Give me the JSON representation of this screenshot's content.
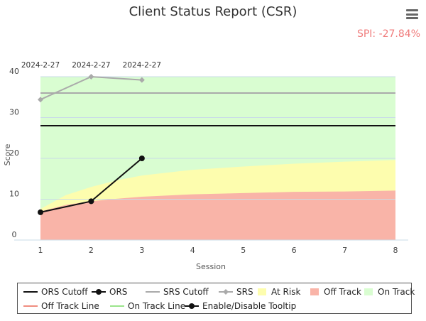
{
  "header": {
    "title": "Client Status Report (CSR)",
    "spi_text": "SPI: -27.84%",
    "menu_icon": "hamburger-menu-icon"
  },
  "chart_data": {
    "type": "line",
    "title": "Client Status Report (CSR)",
    "xlabel": "Session",
    "ylabel": "Score",
    "xlim": [
      1,
      8
    ],
    "ylim": [
      0,
      40
    ],
    "x_ticks": [
      1,
      2,
      3,
      4,
      5,
      6,
      7,
      8
    ],
    "y_ticks": [
      0,
      10,
      20,
      30,
      40
    ],
    "top_labels": [
      {
        "x": 1,
        "text": "2024-2-27"
      },
      {
        "x": 2,
        "text": "2024-2-27"
      },
      {
        "x": 3,
        "text": "2024-2-27"
      }
    ],
    "grid": true,
    "legend_position": "bottom",
    "series": [
      {
        "name": "ORS Cutoff",
        "type": "line",
        "color": "#111111",
        "x": [
          1,
          8
        ],
        "y": [
          28,
          28
        ]
      },
      {
        "name": "ORS",
        "type": "line-markers",
        "color": "#111111",
        "x": [
          1,
          2,
          3
        ],
        "y": [
          6.8,
          9.5,
          20
        ]
      },
      {
        "name": "SRS Cutoff",
        "type": "line",
        "color": "#aaaaaa",
        "x": [
          1,
          8
        ],
        "y": [
          36,
          36
        ]
      },
      {
        "name": "SRS",
        "type": "line-markers",
        "color": "#aaaaaa",
        "x": [
          1,
          2,
          3
        ],
        "y": [
          34.4,
          40,
          39.2
        ]
      },
      {
        "name": "Off Track",
        "type": "area",
        "color": "#f9b4a8",
        "x": [
          1,
          1.5,
          2,
          2.5,
          3,
          4,
          5,
          6,
          7,
          8
        ],
        "y": [
          7,
          8.6,
          9.5,
          10.1,
          10.6,
          11.2,
          11.5,
          11.8,
          11.9,
          12.1
        ]
      },
      {
        "name": "At Risk",
        "type": "area",
        "color": "#fdfdae",
        "x": [
          1,
          1.5,
          2,
          2.5,
          3,
          4,
          5,
          6,
          7,
          8
        ],
        "y": [
          7.6,
          11,
          13,
          14.6,
          15.8,
          17.2,
          18,
          18.7,
          19.2,
          19.6
        ]
      },
      {
        "name": "On Track",
        "type": "area",
        "color": "#d9fdd1",
        "x": [
          1,
          8
        ],
        "y": [
          40,
          40
        ]
      }
    ]
  },
  "legend": [
    {
      "label": "ORS Cutoff",
      "icon": "line",
      "color": "#111111"
    },
    {
      "label": "ORS",
      "icon": "line-dot",
      "color": "#111111"
    },
    {
      "label": "SRS Cutoff",
      "icon": "line",
      "color": "#aaaaaa"
    },
    {
      "label": "SRS",
      "icon": "line-diamond",
      "color": "#aaaaaa"
    },
    {
      "label": "At Risk",
      "icon": "square",
      "color": "#fdfdae"
    },
    {
      "label": "Off Track",
      "icon": "square",
      "color": "#f9b4a8"
    },
    {
      "label": "On Track",
      "icon": "square",
      "color": "#d9fdd1"
    },
    {
      "label": "Off Track Line",
      "icon": "line",
      "color": "#f08d80"
    },
    {
      "label": "On Track Line",
      "icon": "line",
      "color": "#9be58c"
    },
    {
      "label": "Enable/Disable Tooltip",
      "icon": "line-dot",
      "color": "#111111"
    }
  ]
}
